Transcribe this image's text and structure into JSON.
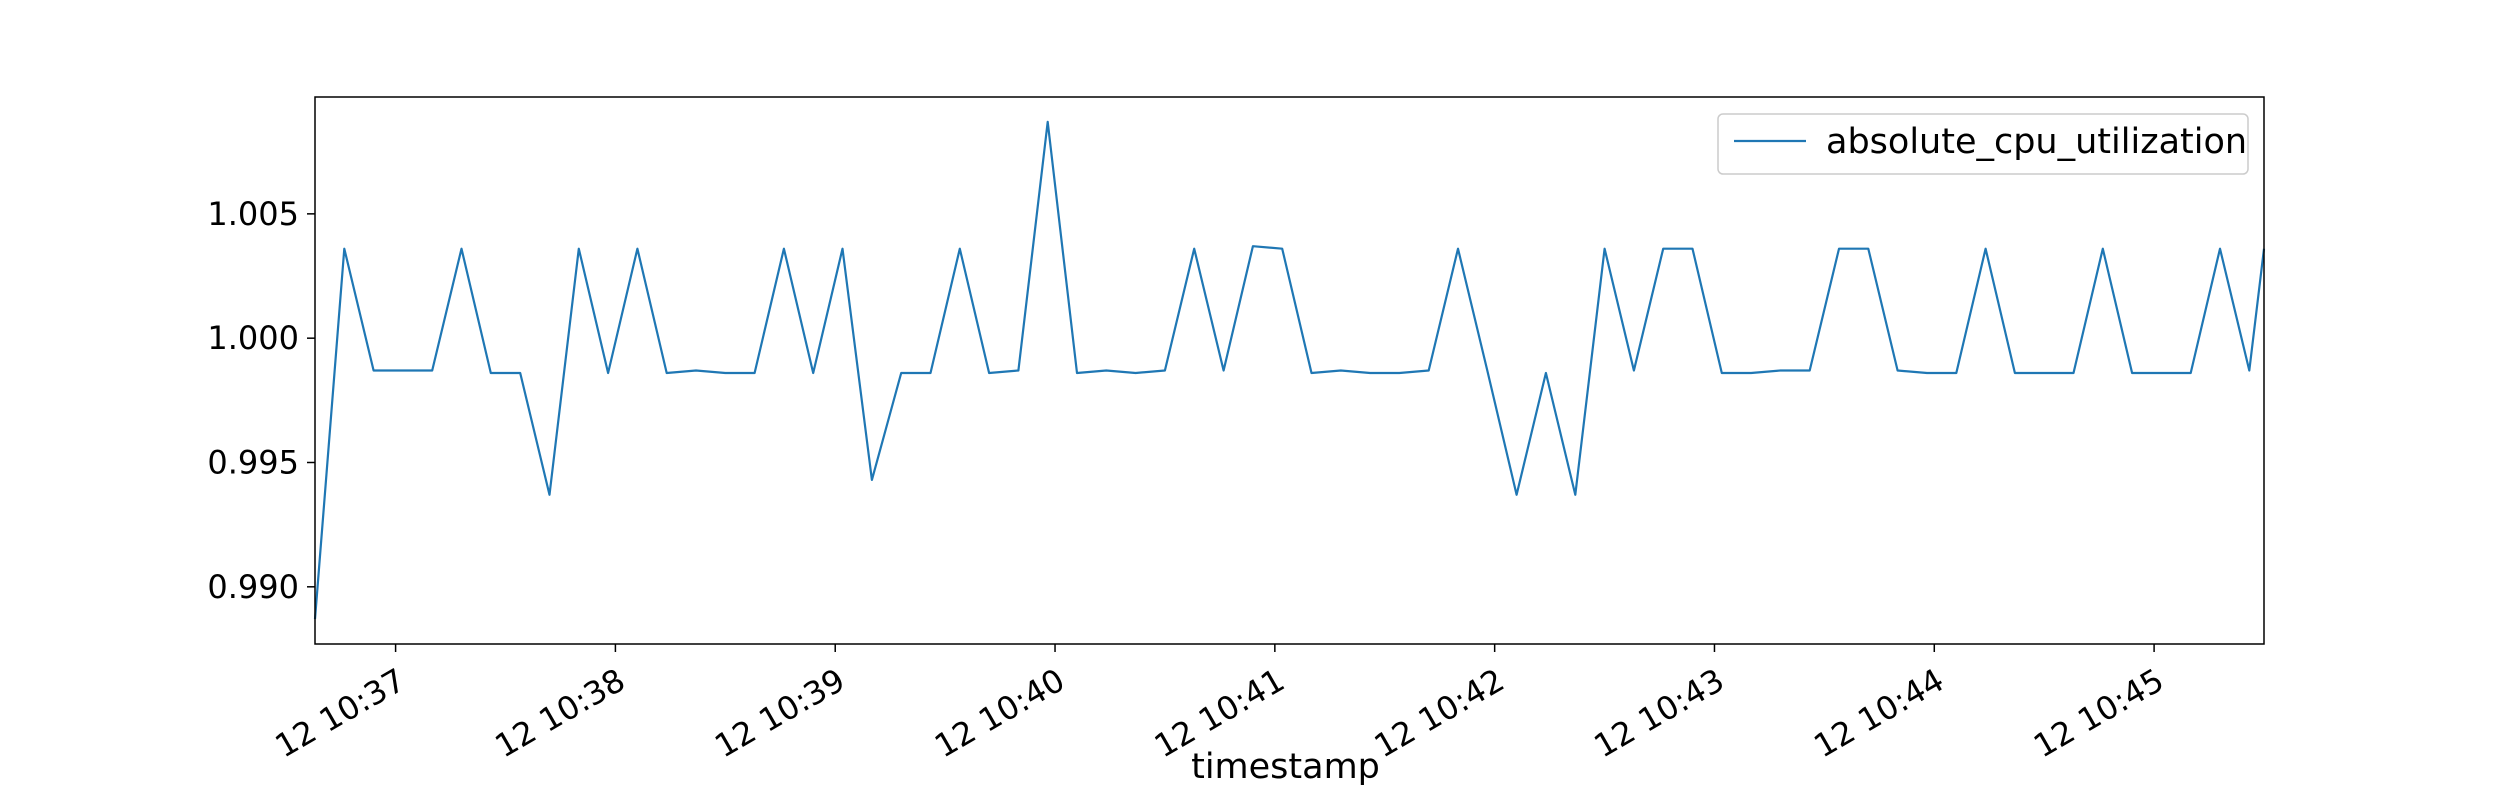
{
  "chart_data": {
    "type": "line",
    "title": "",
    "xlabel": "timestamp",
    "ylabel": "",
    "legend": {
      "position": "top-right"
    },
    "grid": false,
    "x_range": [
      "10:36:38",
      "10:45:30"
    ],
    "ylim": [
      0.9877,
      1.0097
    ],
    "x_tick_labels": [
      "12 10:37",
      "12 10:38",
      "12 10:39",
      "12 10:40",
      "12 10:41",
      "12 10:42",
      "12 10:43",
      "12 10:44",
      "12 10:45"
    ],
    "x_tick_times": [
      "10:37:00",
      "10:38:00",
      "10:39:00",
      "10:40:00",
      "10:41:00",
      "10:42:00",
      "10:43:00",
      "10:44:00",
      "10:45:00"
    ],
    "y_tick_values": [
      0.99,
      0.995,
      1.0,
      1.005
    ],
    "y_tick_labels": [
      "0.990",
      "0.995",
      "1.000",
      "1.005"
    ],
    "series": [
      {
        "name": "absolute_cpu_utilization",
        "color": "#1f77b4",
        "x": [
          "10:36:38",
          "10:36:46",
          "10:36:54",
          "10:37:02",
          "10:37:10",
          "10:37:18",
          "10:37:26",
          "10:37:34",
          "10:37:42",
          "10:37:50",
          "10:37:58",
          "10:38:06",
          "10:38:14",
          "10:38:22",
          "10:38:30",
          "10:38:38",
          "10:38:46",
          "10:38:54",
          "10:39:02",
          "10:39:10",
          "10:39:18",
          "10:39:26",
          "10:39:34",
          "10:39:42",
          "10:39:50",
          "10:39:58",
          "10:40:06",
          "10:40:14",
          "10:40:22",
          "10:40:30",
          "10:40:38",
          "10:40:46",
          "10:40:54",
          "10:41:02",
          "10:41:10",
          "10:41:18",
          "10:41:26",
          "10:41:34",
          "10:41:42",
          "10:41:50",
          "10:41:58",
          "10:42:06",
          "10:42:14",
          "10:42:22",
          "10:42:30",
          "10:42:38",
          "10:42:46",
          "10:42:54",
          "10:43:02",
          "10:43:10",
          "10:43:18",
          "10:43:26",
          "10:43:34",
          "10:43:42",
          "10:43:50",
          "10:43:58",
          "10:44:06",
          "10:44:14",
          "10:44:22",
          "10:44:30",
          "10:44:38",
          "10:44:46",
          "10:44:54",
          "10:45:02",
          "10:45:10",
          "10:45:18",
          "10:45:26",
          "10:45:30"
        ],
        "values": [
          0.9887,
          1.0036,
          0.9987,
          0.9987,
          0.9987,
          1.0036,
          0.9986,
          0.9986,
          0.9937,
          1.0036,
          0.9986,
          1.0036,
          0.9986,
          0.9987,
          0.9986,
          0.9986,
          1.0036,
          0.9986,
          1.0036,
          0.9943,
          0.9986,
          0.9986,
          1.0036,
          0.9986,
          0.9987,
          1.0087,
          0.9986,
          0.9987,
          0.9986,
          0.9987,
          1.0036,
          0.9987,
          1.0037,
          1.0036,
          0.9986,
          0.9987,
          0.9986,
          0.9986,
          0.9987,
          1.0036,
          0.9987,
          0.9937,
          0.9986,
          0.9937,
          1.0036,
          0.9987,
          1.0036,
          1.0036,
          0.9986,
          0.9986,
          0.9987,
          0.9987,
          1.0036,
          1.0036,
          0.9987,
          0.9986,
          0.9986,
          1.0036,
          0.9986,
          0.9986,
          0.9986,
          1.0036,
          0.9986,
          0.9986,
          0.9986,
          1.0036,
          0.9987,
          1.0036
        ]
      }
    ]
  }
}
